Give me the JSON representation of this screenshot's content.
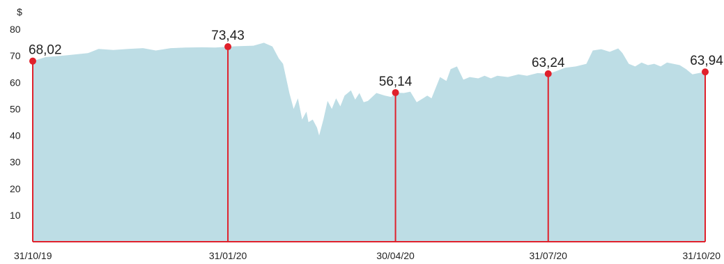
{
  "chart_data": {
    "type": "area",
    "title": "",
    "xlabel": "",
    "ylabel": "$",
    "ylim": [
      0,
      80
    ],
    "yticks": [
      "10",
      "20",
      "30",
      "40",
      "50",
      "60",
      "70",
      "80"
    ],
    "xticks": [
      "31/10/19",
      "31/01/20",
      "30/04/20",
      "31/07/20",
      "31/10/20"
    ],
    "grid": false,
    "colors": {
      "area": "#bddde5",
      "marker": "#e0202b",
      "text": "#222222"
    },
    "series": [
      {
        "name": "",
        "values": [
          [
            0,
            68.02
          ],
          [
            6,
            69.5
          ],
          [
            16,
            70.2
          ],
          [
            26,
            71.0
          ],
          [
            31,
            72.6
          ],
          [
            38,
            72.2
          ],
          [
            45,
            72.6
          ],
          [
            52,
            72.9
          ],
          [
            58,
            72.0
          ],
          [
            65,
            72.9
          ],
          [
            72,
            73.1
          ],
          [
            80,
            73.2
          ],
          [
            86,
            73.1
          ],
          [
            92,
            73.43
          ],
          [
            96,
            73.6
          ],
          [
            104,
            73.8
          ],
          [
            109,
            74.9
          ],
          [
            113,
            73.5
          ],
          [
            116,
            69.0
          ],
          [
            118,
            67.0
          ],
          [
            121,
            56.0
          ],
          [
            123,
            50.0
          ],
          [
            125,
            54.0
          ],
          [
            127,
            46.0
          ],
          [
            129,
            49.0
          ],
          [
            130,
            45.0
          ],
          [
            132,
            46.0
          ],
          [
            134,
            43.0
          ],
          [
            135,
            40.0
          ],
          [
            137,
            46.0
          ],
          [
            139,
            53.0
          ],
          [
            141,
            50.0
          ],
          [
            143,
            54.0
          ],
          [
            145,
            51.0
          ],
          [
            147,
            55.0
          ],
          [
            150,
            57.0
          ],
          [
            152,
            53.5
          ],
          [
            154,
            56.0
          ],
          [
            156,
            52.5
          ],
          [
            158,
            53.0
          ],
          [
            162,
            56.0
          ],
          [
            166,
            55.0
          ],
          [
            169,
            54.5
          ],
          [
            171,
            56.14
          ],
          [
            175,
            56.0
          ],
          [
            178,
            56.5
          ],
          [
            181,
            52.5
          ],
          [
            184,
            54.0
          ],
          [
            186,
            55.0
          ],
          [
            188,
            54.0
          ],
          [
            192,
            62.0
          ],
          [
            195,
            60.5
          ],
          [
            197,
            65.0
          ],
          [
            200,
            66.0
          ],
          [
            203,
            61.0
          ],
          [
            206,
            62.0
          ],
          [
            210,
            61.5
          ],
          [
            213,
            62.5
          ],
          [
            216,
            61.5
          ],
          [
            219,
            62.5
          ],
          [
            224,
            62.0
          ],
          [
            229,
            63.0
          ],
          [
            233,
            62.5
          ],
          [
            238,
            63.5
          ],
          [
            243,
            63.24
          ],
          [
            246,
            64.0
          ],
          [
            251,
            65.5
          ],
          [
            256,
            66.0
          ],
          [
            261,
            67.0
          ],
          [
            264,
            72.0
          ],
          [
            268,
            72.5
          ],
          [
            272,
            71.5
          ],
          [
            276,
            72.8
          ],
          [
            278,
            71.0
          ],
          [
            281,
            67.0
          ],
          [
            284,
            66.0
          ],
          [
            287,
            67.5
          ],
          [
            290,
            66.5
          ],
          [
            293,
            67.0
          ],
          [
            296,
            66.0
          ],
          [
            299,
            67.5
          ],
          [
            302,
            67.0
          ],
          [
            305,
            66.5
          ],
          [
            308,
            65.0
          ],
          [
            311,
            63.0
          ],
          [
            314,
            63.5
          ],
          [
            317,
            63.94
          ]
        ]
      }
    ],
    "annotations": [
      {
        "x": 0,
        "x_label": "31/10/19",
        "value": 68.02,
        "label": "68,02"
      },
      {
        "x": 92,
        "x_label": "31/01/20",
        "value": 73.43,
        "label": "73,43"
      },
      {
        "x": 171,
        "x_label": "30/04/20",
        "value": 56.14,
        "label": "56,14"
      },
      {
        "x": 243,
        "x_label": "31/07/20",
        "value": 63.24,
        "label": "63,24"
      },
      {
        "x": 317,
        "x_label": "31/10/20",
        "value": 63.94,
        "label": "63,94"
      }
    ]
  }
}
